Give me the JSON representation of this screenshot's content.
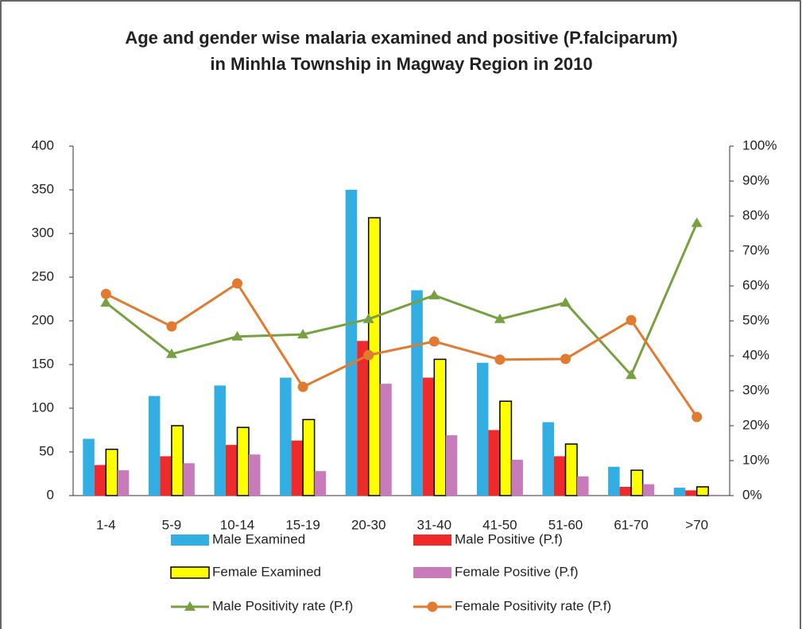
{
  "chart_data": {
    "type": "bar",
    "title": [
      "Age and gender wise malaria examined and positive (P.falciparum)",
      "in Minhla Township in Magway Region in 2010"
    ],
    "categories": [
      "1-4",
      "5-9",
      "10-14",
      "15-19",
      "20-30",
      "31-40",
      "41-50",
      "51-60",
      "61-70",
      ">70"
    ],
    "series": [
      {
        "name": "Male Examined",
        "type": "bar",
        "color": "#33aee2",
        "values": [
          65,
          114,
          126,
          135,
          350,
          235,
          152,
          84,
          33,
          9
        ]
      },
      {
        "name": "Male Positive (P.f)",
        "type": "bar",
        "color": "#ee2a2a",
        "values": [
          35,
          45,
          58,
          63,
          177,
          135,
          75,
          45,
          10,
          6
        ]
      },
      {
        "name": "Female Examined",
        "type": "bar",
        "color": "#ffff00",
        "values": [
          53,
          80,
          78,
          87,
          318,
          156,
          108,
          59,
          29,
          10
        ]
      },
      {
        "name": "Female Positive (P.f)",
        "type": "bar",
        "color": "#c77bbb",
        "values": [
          29,
          37,
          47,
          28,
          128,
          69,
          41,
          22,
          13,
          1
        ]
      },
      {
        "name": "Male Positivity  rate (P.f)",
        "type": "line",
        "axis": "y2",
        "marker": "triangle",
        "color": "#77a040",
        "values": [
          55.2,
          40.5,
          45.5,
          46.1,
          50.5,
          57.3,
          50.5,
          55.2,
          34.5,
          78
        ]
      },
      {
        "name": "Female Positivity rate (P.f)",
        "type": "line",
        "axis": "y2",
        "marker": "circle",
        "color": "#e07b30",
        "values": [
          57.7,
          48.4,
          60.7,
          31.1,
          40.2,
          44.1,
          38.9,
          39.1,
          50.2,
          22.5
        ]
      }
    ],
    "ylim": [
      0,
      400
    ],
    "yticks": [
      0,
      50,
      100,
      150,
      200,
      250,
      300,
      350,
      400
    ],
    "y2lim": [
      0,
      100
    ],
    "y2ticks": [
      {
        "value": 0,
        "label": "0%"
      },
      {
        "value": 10,
        "label": "10%"
      },
      {
        "value": 20,
        "label": "20%"
      },
      {
        "value": 30,
        "label": "30%"
      },
      {
        "value": 40,
        "label": "40%"
      },
      {
        "value": 50,
        "label": "50%"
      },
      {
        "value": 60,
        "label": "60%"
      },
      {
        "value": 70,
        "label": "70%"
      },
      {
        "value": 80,
        "label": "80%"
      },
      {
        "value": 90,
        "label": "90%"
      },
      {
        "value": 100,
        "label": "100%"
      }
    ],
    "grid": false
  }
}
